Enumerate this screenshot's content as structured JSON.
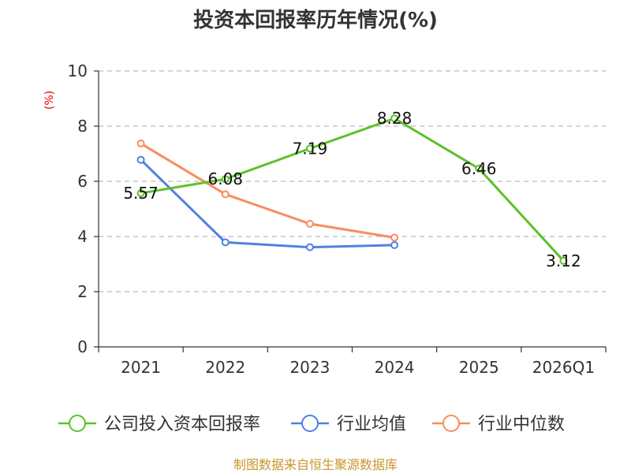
{
  "chart_data": {
    "type": "line",
    "title": "投资本回报率历年情况(%)",
    "ylabel": "(%)",
    "xlabel": "",
    "categories": [
      "2021",
      "2022",
      "2023",
      "2024",
      "2025",
      "2026Q1"
    ],
    "ylim": [
      0,
      10
    ],
    "yticks": [
      0,
      2,
      4,
      6,
      8,
      10
    ],
    "grid": true,
    "legend_position": "bottom",
    "series": [
      {
        "name": "公司投入资本回报率",
        "color": "#5cc22a",
        "values": [
          5.57,
          6.08,
          7.19,
          8.28,
          6.46,
          3.12
        ],
        "labels": [
          "5.57",
          "6.08",
          "7.19",
          "8.28",
          "6.46",
          "3.12"
        ]
      },
      {
        "name": "行业均值",
        "color": "#4f81e0",
        "values": [
          6.78,
          3.79,
          3.61,
          3.69,
          null,
          null
        ]
      },
      {
        "name": "行业中位数",
        "color": "#f78e5b",
        "values": [
          7.37,
          5.53,
          4.46,
          3.96,
          null,
          null
        ]
      }
    ]
  },
  "footer": {
    "source": "制图数据来自恒生聚源数据库"
  }
}
